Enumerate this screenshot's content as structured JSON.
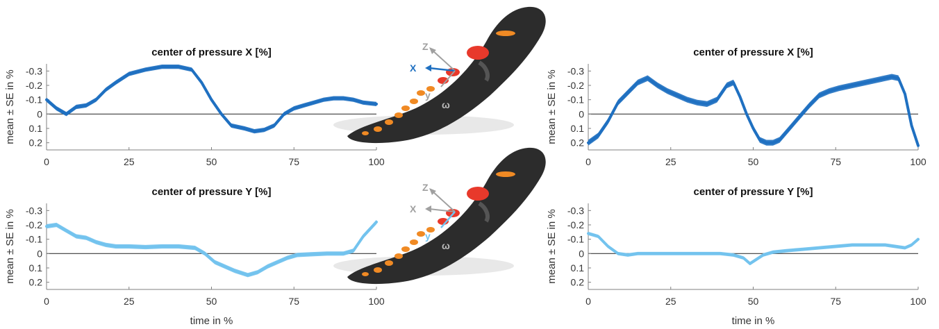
{
  "colors": {
    "dark_blue": "#1f70c1",
    "light_blue": "#73c3ee",
    "axis": "#808080",
    "zero_line": "#3a3a3a",
    "insole": "#2c2c2c",
    "orange": "#f08a24",
    "red": "#e8392b",
    "gray_axis": "#a0a0a0"
  },
  "insole_labels": {
    "top": {
      "z": "Z",
      "x": "X",
      "y": "y",
      "omega": "ω"
    },
    "bottom": {
      "z": "Z",
      "x": "X",
      "y": "y",
      "omega": "ω"
    }
  },
  "chart_data": [
    {
      "type": "line",
      "title": "center of pressure X [%]",
      "ylabel": "mean ± SE in %",
      "xlabel": "",
      "xlim": [
        0,
        100
      ],
      "ylim": [
        -0.35,
        0.25
      ],
      "y_reversed": true,
      "xticks": [
        0,
        25,
        50,
        75,
        100
      ],
      "yticks": [
        -0.3,
        -0.2,
        -0.1,
        0,
        0.1,
        0.2
      ],
      "ytick_labels": [
        "-0.3",
        "-0.2",
        "-0.1",
        "0",
        "0.1",
        "0.2"
      ],
      "color": "#1f70c1",
      "band": 0.015,
      "x": [
        0,
        3,
        6,
        9,
        12,
        15,
        18,
        21,
        25,
        30,
        35,
        40,
        44,
        47,
        50,
        53,
        56,
        60,
        63,
        66,
        69,
        72,
        75,
        78,
        81,
        84,
        87,
        90,
        93,
        96,
        100
      ],
      "y": [
        -0.1,
        -0.04,
        0.0,
        -0.05,
        -0.06,
        -0.1,
        -0.17,
        -0.22,
        -0.28,
        -0.31,
        -0.33,
        -0.33,
        -0.31,
        -0.22,
        -0.1,
        0.0,
        0.08,
        0.1,
        0.12,
        0.11,
        0.08,
        0.0,
        -0.04,
        -0.06,
        -0.08,
        -0.1,
        -0.11,
        -0.11,
        -0.1,
        -0.08,
        -0.07
      ]
    },
    {
      "type": "line",
      "title": "center of pressure Y [%]",
      "ylabel": "mean ± SE in %",
      "xlabel": "time in %",
      "xlim": [
        0,
        100
      ],
      "ylim": [
        -0.35,
        0.25
      ],
      "y_reversed": true,
      "xticks": [
        0,
        25,
        50,
        75,
        100
      ],
      "yticks": [
        -0.3,
        -0.2,
        -0.1,
        0,
        0.1,
        0.2
      ],
      "ytick_labels": [
        "-0.3",
        "-0.2",
        "-0.1",
        "0",
        "0.1",
        "0.2"
      ],
      "color": "#73c3ee",
      "band": 0.015,
      "x": [
        0,
        3,
        6,
        9,
        12,
        15,
        18,
        21,
        25,
        30,
        35,
        40,
        45,
        48,
        51,
        54,
        57,
        61,
        64,
        67,
        70,
        73,
        76,
        80,
        85,
        90,
        93,
        96,
        100
      ],
      "y": [
        -0.19,
        -0.2,
        -0.16,
        -0.12,
        -0.11,
        -0.08,
        -0.06,
        -0.05,
        -0.05,
        -0.045,
        -0.05,
        -0.05,
        -0.04,
        0.0,
        0.06,
        0.09,
        0.12,
        0.15,
        0.13,
        0.09,
        0.06,
        0.03,
        0.01,
        0.005,
        0.0,
        0.0,
        -0.02,
        -0.12,
        -0.22
      ]
    },
    {
      "type": "line",
      "title": "center of pressure X [%]",
      "ylabel": "mean ± SE in %",
      "xlabel": "",
      "xlim": [
        0,
        100
      ],
      "ylim": [
        -0.35,
        0.25
      ],
      "y_reversed": true,
      "xticks": [
        0,
        25,
        50,
        75,
        100
      ],
      "yticks": [
        -0.3,
        -0.2,
        -0.1,
        0,
        0.1,
        0.2
      ],
      "ytick_labels": [
        "-0.3",
        "-0.2",
        "-0.1",
        "0",
        "0.1",
        "0.2"
      ],
      "color": "#1f70c1",
      "band": 0.02,
      "x": [
        0,
        3,
        6,
        9,
        12,
        15,
        18,
        21,
        24,
        27,
        30,
        33,
        36,
        39,
        42,
        44,
        46,
        48,
        50,
        52,
        54,
        56,
        58,
        61,
        64,
        67,
        70,
        73,
        76,
        80,
        84,
        88,
        92,
        94,
        96,
        98,
        100
      ],
      "y": [
        0.2,
        0.15,
        0.05,
        -0.08,
        -0.15,
        -0.22,
        -0.25,
        -0.2,
        -0.16,
        -0.13,
        -0.1,
        -0.08,
        -0.07,
        -0.1,
        -0.2,
        -0.22,
        -0.12,
        0.0,
        0.1,
        0.18,
        0.2,
        0.2,
        0.18,
        0.1,
        0.02,
        -0.06,
        -0.13,
        -0.16,
        -0.18,
        -0.2,
        -0.22,
        -0.24,
        -0.26,
        -0.25,
        -0.14,
        0.08,
        0.22
      ]
    },
    {
      "type": "line",
      "title": "center of pressure Y [%]",
      "ylabel": "mean ± SE in %",
      "xlabel": "time in %",
      "xlim": [
        0,
        100
      ],
      "ylim": [
        -0.35,
        0.25
      ],
      "y_reversed": true,
      "xticks": [
        0,
        25,
        50,
        75,
        100
      ],
      "yticks": [
        -0.3,
        -0.2,
        -0.1,
        0,
        0.1,
        0.2
      ],
      "ytick_labels": [
        "-0.3",
        "-0.2",
        "-0.1",
        "0",
        "0.1",
        "0.2"
      ],
      "color": "#73c3ee",
      "band": 0.012,
      "x": [
        0,
        3,
        6,
        9,
        12,
        15,
        20,
        25,
        30,
        35,
        40,
        44,
        47,
        49,
        51,
        53,
        56,
        60,
        65,
        70,
        75,
        80,
        85,
        90,
        93,
        96,
        98,
        100
      ],
      "y": [
        -0.14,
        -0.12,
        -0.05,
        0.0,
        0.01,
        0.0,
        0.0,
        0.0,
        0.0,
        0.0,
        0.0,
        0.01,
        0.03,
        0.07,
        0.04,
        0.01,
        -0.01,
        -0.02,
        -0.03,
        -0.04,
        -0.05,
        -0.06,
        -0.06,
        -0.06,
        -0.05,
        -0.04,
        -0.06,
        -0.1
      ]
    }
  ]
}
